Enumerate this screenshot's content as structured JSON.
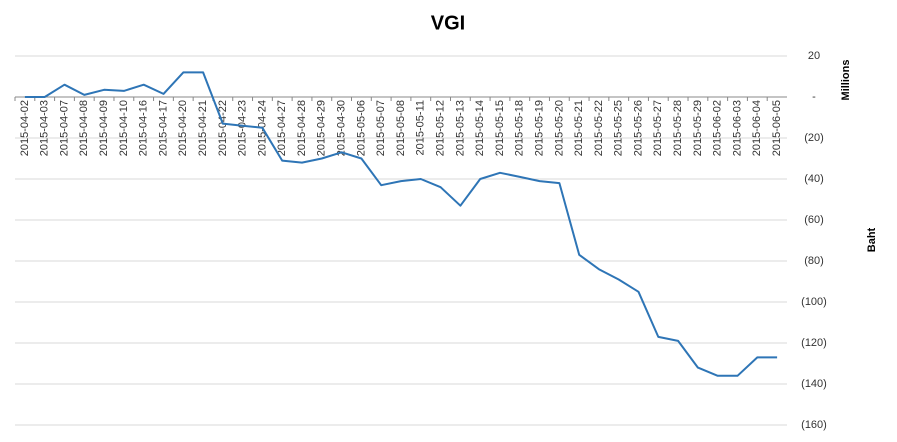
{
  "chart_data": {
    "type": "line",
    "title": "VGI",
    "y_label": "Millions",
    "y_label_2": "Baht",
    "categories": [
      "2015-04-02",
      "2015-04-03",
      "2015-04-07",
      "2015-04-08",
      "2015-04-09",
      "2015-04-10",
      "2015-04-16",
      "2015-04-17",
      "2015-04-20",
      "2015-04-21",
      "2015-04-22",
      "2015-04-23",
      "2015-04-24",
      "2015-04-27",
      "2015-04-28",
      "2015-04-29",
      "2015-04-30",
      "2015-05-06",
      "2015-05-07",
      "2015-05-08",
      "2015-05-11",
      "2015-05-12",
      "2015-05-13",
      "2015-05-14",
      "2015-05-15",
      "2015-05-18",
      "2015-05-19",
      "2015-05-20",
      "2015-05-21",
      "2015-05-22",
      "2015-05-25",
      "2015-05-26",
      "2015-05-27",
      "2015-05-28",
      "2015-05-29",
      "2015-06-02",
      "2015-06-03",
      "2015-06-04",
      "2015-06-05"
    ],
    "values": [
      0,
      0,
      6,
      1,
      3.5,
      3,
      6,
      1.5,
      12,
      12,
      -13,
      -14,
      -15,
      -31,
      -32,
      -30,
      -27,
      -30,
      -43,
      -41,
      -40,
      -44,
      -53,
      -40,
      -37,
      -39,
      -41,
      -42,
      -77,
      -84,
      -89,
      -95,
      -117,
      -119,
      -132,
      -136,
      -136,
      -127,
      -127
    ],
    "color": "#2e75b6",
    "ylim": [
      -160,
      20
    ],
    "yticks": [
      20,
      {
        "value": 0,
        "label": "-"
      },
      {
        "value": -20,
        "label": "(20)"
      },
      {
        "value": -40,
        "label": "(40)"
      },
      {
        "value": -60,
        "label": "(60)"
      },
      {
        "value": -80,
        "label": "(80)"
      },
      {
        "value": -100,
        "label": "(100)"
      },
      {
        "value": -120,
        "label": "(120)"
      },
      {
        "value": -140,
        "label": "(140)"
      },
      {
        "value": -160,
        "label": "(160)"
      }
    ],
    "grid": true
  }
}
